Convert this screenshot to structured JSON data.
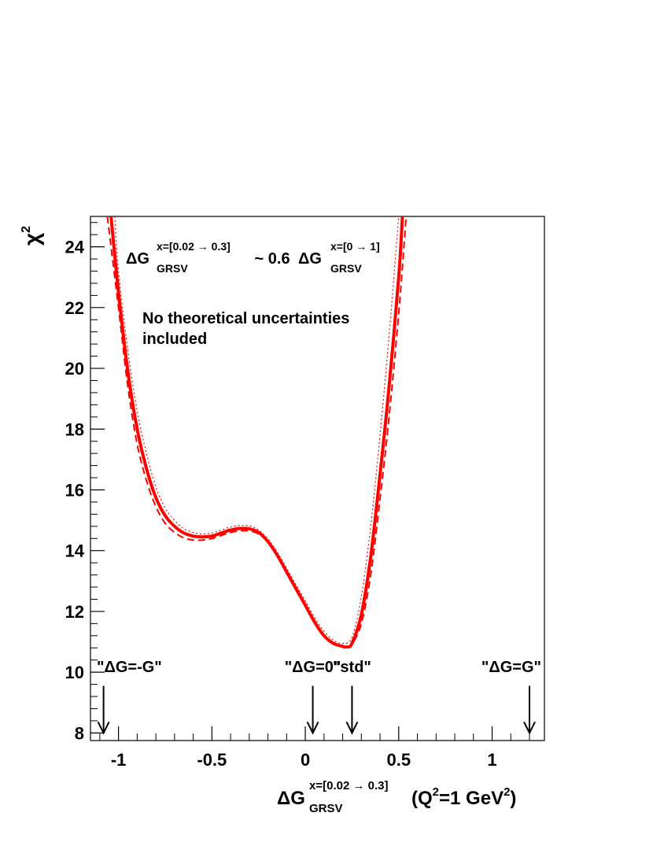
{
  "chart_data": {
    "type": "line",
    "xlim": [
      -1.15,
      1.28
    ],
    "ylim": [
      7.75,
      25.0
    ],
    "x_ticks": [
      -1,
      -0.5,
      0,
      0.5,
      1
    ],
    "x_tick_labels": [
      "-1",
      "-0.5",
      "0",
      "0.5",
      "1"
    ],
    "y_ticks": [
      8,
      10,
      12,
      14,
      16,
      18,
      20,
      22,
      24
    ],
    "y_tick_labels": [
      "8",
      "10",
      "12",
      "14",
      "16",
      "18",
      "20",
      "22",
      "24"
    ],
    "xlabel": {
      "main": "ΔG",
      "sub": "GRSV",
      "sup": "x=[0.02 → 0.3]",
      "tail": " (Q",
      "tail_sup": "2",
      "tail_end": "=1 GeV",
      "tail_end_sup": "2",
      "close": ")"
    },
    "ylabel": {
      "main": "χ",
      "sup": "2"
    },
    "annotation_formula": {
      "lhs": "ΔG",
      "lhs_sub": "GRSV",
      "lhs_sup": "x=[0.02 → 0.3]",
      "middle": " ~ 0.6 ",
      "rhs": "ΔG",
      "rhs_sub": "GRSV",
      "rhs_sup": "x=[0 → 1]"
    },
    "annotation_note": [
      "No theoretical uncertainties",
      "included"
    ],
    "markers": [
      {
        "label": "\"ΔG=-G\"",
        "x": -1.08
      },
      {
        "label": "\"ΔG=0\"",
        "x": 0.04
      },
      {
        "label": "\"std\"",
        "x": 0.25
      },
      {
        "label": "\"ΔG=G\"",
        "x": 1.2
      }
    ],
    "grid": false,
    "color": "#ff0000",
    "series": [
      {
        "style": "solid",
        "x": [
          -1.04,
          -1.0,
          -0.95,
          -0.9,
          -0.85,
          -0.8,
          -0.75,
          -0.7,
          -0.65,
          -0.6,
          -0.55,
          -0.5,
          -0.45,
          -0.4,
          -0.35,
          -0.3,
          -0.25,
          -0.2,
          -0.15,
          -0.1,
          -0.05,
          0.0,
          0.05,
          0.1,
          0.15,
          0.2,
          0.22,
          0.25,
          0.3,
          0.35,
          0.4,
          0.45,
          0.5,
          0.52
        ],
        "y": [
          25.0,
          22.5,
          19.9,
          18.0,
          16.7,
          15.75,
          15.15,
          14.8,
          14.58,
          14.48,
          14.45,
          14.48,
          14.58,
          14.68,
          14.73,
          14.72,
          14.6,
          14.3,
          13.85,
          13.3,
          12.75,
          12.2,
          11.65,
          11.2,
          10.95,
          10.85,
          10.83,
          10.95,
          11.9,
          13.8,
          16.5,
          19.5,
          23.0,
          25.0
        ]
      },
      {
        "style": "dashed",
        "x": [
          -1.06,
          -1.0,
          -0.95,
          -0.9,
          -0.85,
          -0.8,
          -0.75,
          -0.7,
          -0.65,
          -0.6,
          -0.55,
          -0.5,
          -0.45,
          -0.4,
          -0.35,
          -0.3,
          -0.25,
          -0.2,
          -0.15,
          -0.1,
          -0.05,
          0.0,
          0.05,
          0.1,
          0.15,
          0.2,
          0.22,
          0.25,
          0.3,
          0.35,
          0.4,
          0.45,
          0.5,
          0.54
        ],
        "y": [
          25.0,
          22.0,
          19.4,
          17.5,
          16.3,
          15.45,
          14.9,
          14.6,
          14.42,
          14.35,
          14.35,
          14.4,
          14.5,
          14.6,
          14.65,
          14.65,
          14.55,
          14.28,
          13.85,
          13.3,
          12.75,
          12.2,
          11.65,
          11.2,
          10.95,
          10.85,
          10.83,
          10.92,
          11.6,
          13.2,
          15.7,
          18.5,
          21.8,
          25.0
        ]
      },
      {
        "style": "dotted",
        "x": [
          -1.02,
          -1.0,
          -0.95,
          -0.9,
          -0.85,
          -0.8,
          -0.75,
          -0.7,
          -0.65,
          -0.6,
          -0.55,
          -0.5,
          -0.45,
          -0.4,
          -0.35,
          -0.3,
          -0.25,
          -0.2,
          -0.15,
          -0.1,
          -0.05,
          0.0,
          0.05,
          0.1,
          0.15,
          0.2,
          0.25,
          0.3,
          0.35,
          0.4,
          0.45,
          0.5
        ],
        "y": [
          25.0,
          23.2,
          20.6,
          18.6,
          17.2,
          16.1,
          15.4,
          15.0,
          14.72,
          14.6,
          14.55,
          14.58,
          14.68,
          14.78,
          14.83,
          14.82,
          14.68,
          14.38,
          13.95,
          13.42,
          12.88,
          12.35,
          11.8,
          11.35,
          11.05,
          10.95,
          11.15,
          12.5,
          14.8,
          17.8,
          21.2,
          25.0
        ]
      }
    ]
  }
}
